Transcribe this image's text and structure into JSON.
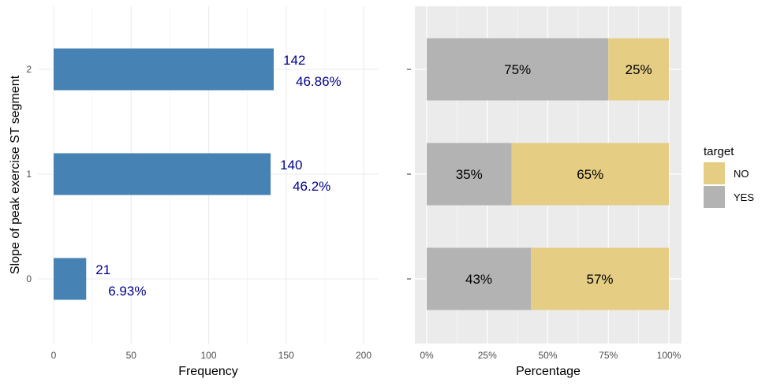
{
  "chart_data": [
    {
      "type": "bar",
      "orientation": "horizontal",
      "title": "",
      "xlabel": "Frequency",
      "ylabel": "Slope of peak exercise ST segment",
      "categories": [
        "0",
        "1",
        "2"
      ],
      "values": [
        21,
        140,
        142
      ],
      "percent_labels": [
        "6.93%",
        "46.2%",
        "46.86%"
      ],
      "xlim": [
        0,
        210
      ],
      "x_ticks": [
        "0",
        "50",
        "100",
        "150",
        "200"
      ],
      "grid": true,
      "bar_color": "#4682B4",
      "label_color": "#00008B"
    },
    {
      "type": "bar",
      "stacked": true,
      "percent": true,
      "orientation": "horizontal",
      "title": "",
      "xlabel": "Percentage",
      "ylabel": "",
      "categories": [
        "0",
        "1",
        "2"
      ],
      "series": [
        {
          "name": "YES",
          "color": "#B3B3B3",
          "values": [
            43,
            35,
            75
          ],
          "labels": [
            "43%",
            "35%",
            "75%"
          ]
        },
        {
          "name": "NO",
          "color": "#E5CD83",
          "values": [
            57,
            65,
            25
          ],
          "labels": [
            "57%",
            "65%",
            "25%"
          ]
        }
      ],
      "xlim": [
        0,
        100
      ],
      "x_ticks": [
        "0%",
        "25%",
        "50%",
        "75%",
        "100%"
      ],
      "grid": true,
      "panel_background": "#EBEBEB",
      "legend": {
        "title": "target",
        "placement": "right",
        "entries": [
          {
            "label": "NO",
            "color": "#E5CD83"
          },
          {
            "label": "YES",
            "color": "#B3B3B3"
          }
        ]
      }
    }
  ]
}
